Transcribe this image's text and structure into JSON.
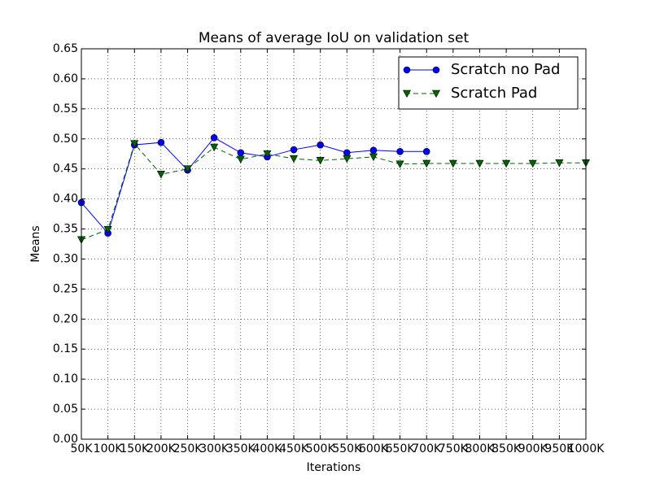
{
  "chart_data": {
    "type": "line",
    "title": "Means of average IoU on validation set",
    "x_label": "Iterations",
    "y_label": "Means",
    "categories": [
      "50K",
      "100K",
      "150K",
      "200K",
      "250K",
      "300K",
      "350K",
      "400K",
      "450K",
      "500K",
      "550K",
      "600K",
      "650K",
      "700K",
      "750K",
      "800K",
      "850K",
      "900K",
      "950K",
      "1000K"
    ],
    "series": [
      {
        "name": "Scratch no Pad",
        "color": "#0000ff",
        "marker": "circle",
        "dash": false,
        "values": [
          0.394,
          0.343,
          0.49,
          0.494,
          0.448,
          0.502,
          0.477,
          0.47,
          0.482,
          0.49,
          0.477,
          0.481,
          0.479,
          0.479,
          null,
          null,
          null,
          null,
          null,
          null
        ]
      },
      {
        "name": "Scratch Pad",
        "color": "#006400",
        "marker": "triangle-down",
        "dash": true,
        "values": [
          0.332,
          0.349,
          0.492,
          0.441,
          0.45,
          0.486,
          0.466,
          0.475,
          0.467,
          0.464,
          0.467,
          0.47,
          0.458,
          0.459,
          0.459,
          0.459,
          0.459,
          0.459,
          0.46,
          0.46
        ]
      }
    ],
    "ylim": [
      0,
      0.65
    ],
    "yticks": [
      {
        "value": 0,
        "label": "0.00"
      },
      0.05,
      {
        "value": 0.1,
        "label": "0.10"
      },
      0.15,
      {
        "value": 0.2,
        "label": "0.20"
      },
      0.25,
      {
        "value": 0.3,
        "label": "0.30"
      },
      0.35,
      {
        "value": 0.4,
        "label": "0.40"
      },
      0.45,
      {
        "value": 0.5,
        "label": "0.50"
      },
      0.55,
      {
        "value": 0.6,
        "label": "0.60"
      },
      0.65
    ],
    "grid": true,
    "legend": "upper right"
  }
}
